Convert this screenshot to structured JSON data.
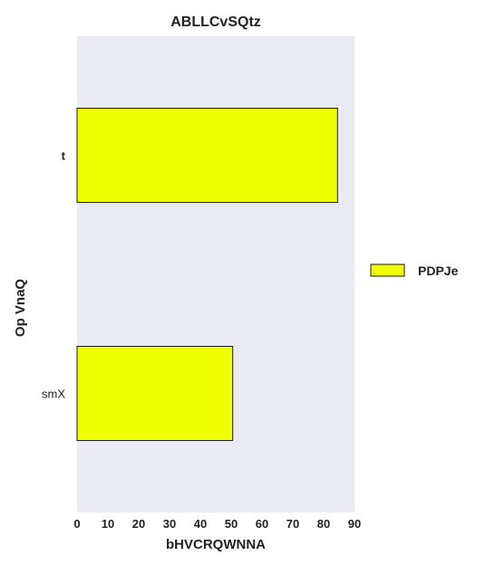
{
  "chart_data": {
    "type": "bar",
    "orientation": "horizontal",
    "title": "ABLLCvSQtz",
    "xlabel": "bHVCRQWNNA",
    "ylabel": "Op VnaQ",
    "categories": [
      "smX",
      "t"
    ],
    "series": [
      {
        "name": "PDPJe",
        "values": [
          50.5,
          84.5
        ],
        "color": "#eeff00"
      }
    ],
    "xlim": [
      0,
      90
    ],
    "xticks": [
      "0",
      "10",
      "20",
      "30",
      "40",
      "50",
      "60",
      "70",
      "80",
      "90"
    ],
    "grid": false,
    "legend_position": "right",
    "plot_background": "#eaeaf2"
  }
}
